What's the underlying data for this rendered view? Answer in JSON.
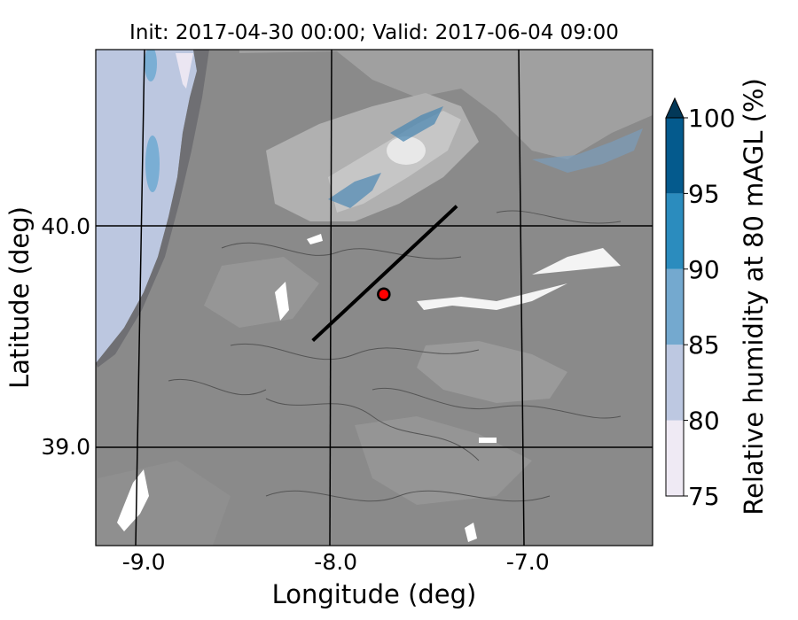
{
  "chart_data": {
    "type": "heatmap",
    "title": "Init: 2017-04-30 00:00; Valid: 2017-06-04 09:00",
    "xlabel": "Longitude (deg)",
    "ylabel": "Latitude (deg)",
    "xlim": [
      -9.25,
      -6.35
    ],
    "ylim": [
      38.55,
      40.8
    ],
    "xticks": [
      -9.0,
      -8.0,
      -7.0
    ],
    "yticks": [
      39.0,
      40.0
    ],
    "xtick_labels": [
      "-9.0",
      "-8.0",
      "-7.0"
    ],
    "ytick_labels": [
      "39.0",
      "40.0"
    ],
    "grid": true,
    "transect": {
      "start": [
        -8.12,
        39.48
      ],
      "end": [
        -7.37,
        40.09
      ]
    },
    "marker": {
      "lon": -7.75,
      "lat": 39.69,
      "color": "#ff0000"
    },
    "colorbar": {
      "label": "Relative humidity at 80 mAGL (%)",
      "levels": [
        75,
        80,
        85,
        90,
        95,
        100
      ],
      "tick_labels": [
        "75",
        "80",
        "85",
        "90",
        "95",
        "100"
      ],
      "colors": [
        "#efeaf4",
        "#bdc8e1",
        "#74a9cf",
        "#2b8cbe",
        "#045a8d"
      ],
      "extend": "max",
      "extend_color": "#023858"
    }
  }
}
